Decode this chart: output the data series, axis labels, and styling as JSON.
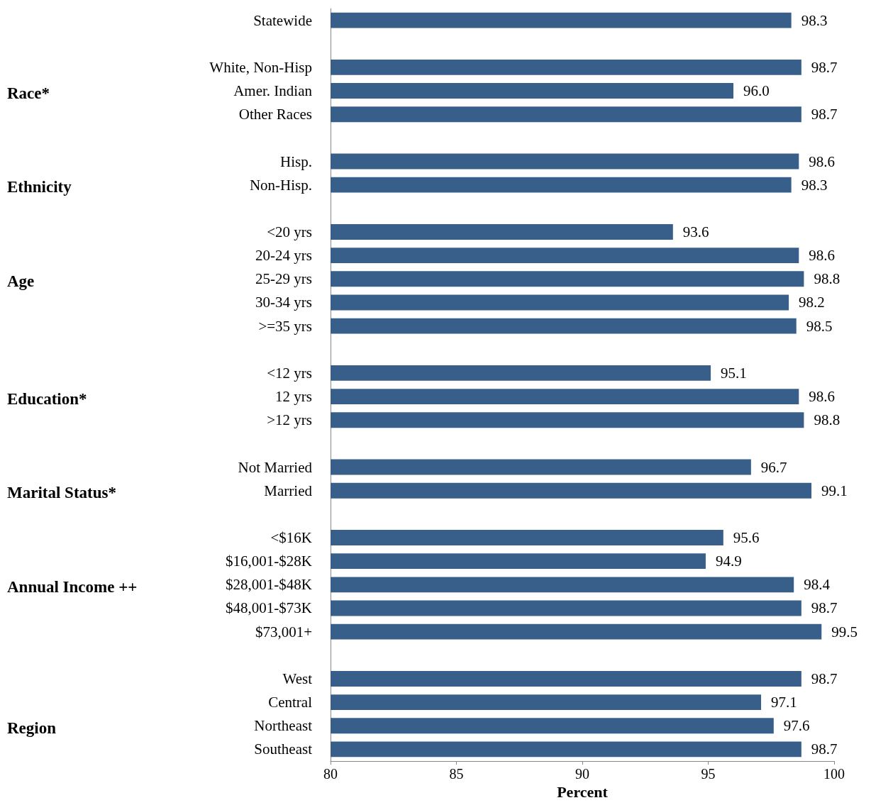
{
  "chart_data": {
    "type": "bar",
    "orientation": "horizontal",
    "categories": [
      "Statewide",
      null,
      "White, Non-Hisp",
      "Amer. Indian",
      "Other Races",
      null,
      "Hisp.",
      "Non-Hisp.",
      null,
      "<20 yrs",
      "20-24 yrs",
      "25-29 yrs",
      "30-34 yrs",
      ">=35 yrs",
      null,
      "<12 yrs",
      "12 yrs",
      ">12 yrs",
      null,
      "Not Married",
      "Married",
      null,
      "<$16K",
      "$16,001-$28K",
      "$28,001-$48K",
      "$48,001-$73K",
      "$73,001+",
      null,
      "West",
      "Central",
      "Northeast",
      "Southeast"
    ],
    "values": [
      98.3,
      null,
      98.7,
      96.0,
      98.7,
      null,
      98.6,
      98.3,
      null,
      93.6,
      98.6,
      98.8,
      98.2,
      98.5,
      null,
      95.1,
      98.6,
      98.8,
      null,
      96.7,
      99.1,
      null,
      95.6,
      94.9,
      98.4,
      98.7,
      99.5,
      null,
      98.7,
      97.1,
      97.6,
      98.7
    ],
    "value_labels": [
      "98.3",
      null,
      "98.7",
      "96.0",
      "98.7",
      null,
      "98.6",
      "98.3",
      null,
      "93.6",
      "98.6",
      "98.8",
      "98.2",
      "98.5",
      null,
      "95.1",
      "98.6",
      "98.8",
      null,
      "96.7",
      "99.1",
      null,
      "95.6",
      "94.9",
      "98.4",
      "98.7",
      "99.5",
      null,
      "98.7",
      "97.1",
      "97.6",
      "98.7"
    ],
    "color": "#375f8a",
    "xlim": [
      80,
      100
    ],
    "xticks": [
      80,
      85,
      90,
      95,
      100
    ],
    "xlabel": "Percent",
    "grid": false,
    "annotations": [
      "Race*",
      "Ethnicity",
      "Age",
      "Education*",
      "Marital Status*",
      "Annual Income ++",
      "Region"
    ]
  }
}
